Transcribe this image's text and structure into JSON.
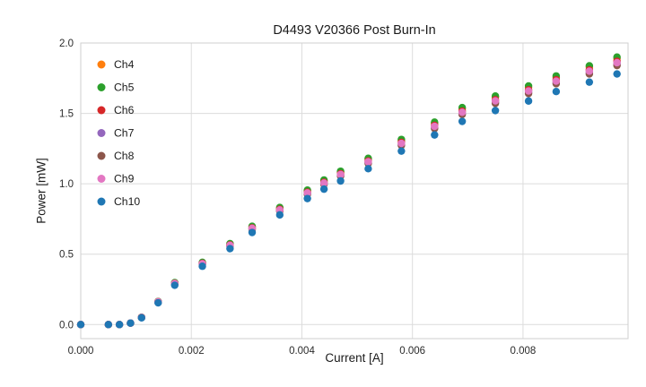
{
  "chart_data": {
    "type": "scatter",
    "title": "D4493 V20366 Post Burn-In",
    "xlabel": "Current [A]",
    "ylabel": "Power [mW]",
    "xlim": [
      0,
      0.0099
    ],
    "ylim": [
      -0.1,
      2.0
    ],
    "xticks": [
      0.0,
      0.002,
      0.004,
      0.006,
      0.008
    ],
    "xtick_labels": [
      "0.000",
      "0.002",
      "0.004",
      "0.006",
      "0.008"
    ],
    "yticks": [
      0.0,
      0.5,
      1.0,
      1.5,
      2.0
    ],
    "ytick_labels": [
      "0.0",
      "0.5",
      "1.0",
      "1.5",
      "2.0"
    ],
    "grid": true,
    "legend_position": "upper left",
    "x": [
      0.0,
      0.0005,
      0.0007,
      0.0009,
      0.0011,
      0.0014,
      0.0017,
      0.0022,
      0.0027,
      0.0031,
      0.0036,
      0.0041,
      0.0044,
      0.0047,
      0.0052,
      0.0058,
      0.0064,
      0.0069,
      0.0075,
      0.0081,
      0.0086,
      0.0092,
      0.0097
    ],
    "series": [
      {
        "name": "Ch4",
        "color": "#ff7f0e",
        "values": [
          0,
          0,
          0,
          0.01,
          0.051,
          0.163,
          0.296,
          0.439,
          0.572,
          0.695,
          0.827,
          0.95,
          1.022,
          1.083,
          1.175,
          1.308,
          1.43,
          1.532,
          1.614,
          1.686,
          1.757,
          1.829,
          1.89
        ]
      },
      {
        "name": "Ch5",
        "color": "#2ca02c",
        "values": [
          0,
          0,
          0,
          0.01,
          0.051,
          0.164,
          0.298,
          0.442,
          0.575,
          0.698,
          0.832,
          0.955,
          1.027,
          1.089,
          1.181,
          1.315,
          1.438,
          1.541,
          1.623,
          1.695,
          1.766,
          1.838,
          1.9
        ]
      },
      {
        "name": "Ch6",
        "color": "#d62728",
        "values": [
          0,
          0,
          0,
          0.01,
          0.051,
          0.162,
          0.293,
          0.435,
          0.566,
          0.687,
          0.819,
          0.94,
          1.011,
          1.071,
          1.162,
          1.294,
          1.415,
          1.516,
          1.597,
          1.668,
          1.739,
          1.809,
          1.87
        ]
      },
      {
        "name": "Ch7",
        "color": "#9467bd",
        "values": [
          0,
          0,
          0,
          0.01,
          0.05,
          0.16,
          0.29,
          0.43,
          0.56,
          0.68,
          0.81,
          0.93,
          1.0,
          1.06,
          1.15,
          1.28,
          1.4,
          1.5,
          1.58,
          1.65,
          1.72,
          1.79,
          1.85
        ]
      },
      {
        "name": "Ch8",
        "color": "#8c564b",
        "values": [
          0,
          0,
          0,
          0.01,
          0.05,
          0.159,
          0.288,
          0.428,
          0.557,
          0.676,
          0.806,
          0.925,
          0.995,
          1.054,
          1.144,
          1.273,
          1.392,
          1.492,
          1.571,
          1.641,
          1.711,
          1.78,
          1.84
        ]
      },
      {
        "name": "Ch9",
        "color": "#e377c2",
        "values": [
          0,
          0,
          0,
          0.01,
          0.05,
          0.161,
          0.292,
          0.432,
          0.563,
          0.684,
          0.814,
          0.935,
          1.005,
          1.066,
          1.156,
          1.287,
          1.408,
          1.508,
          1.589,
          1.659,
          1.729,
          1.8,
          1.86
        ]
      },
      {
        "name": "Ch10",
        "color": "#1f77b4",
        "values": [
          0,
          0,
          0,
          0.01,
          0.048,
          0.154,
          0.279,
          0.414,
          0.539,
          0.654,
          0.779,
          0.895,
          0.962,
          1.02,
          1.107,
          1.232,
          1.347,
          1.443,
          1.52,
          1.588,
          1.655,
          1.722,
          1.78
        ]
      }
    ],
    "style": {
      "grid_color": "#dcdcdc",
      "border_color": "#cfcfcf",
      "tick_color": "#2b2b2b",
      "marker_radius": 4.2
    }
  }
}
